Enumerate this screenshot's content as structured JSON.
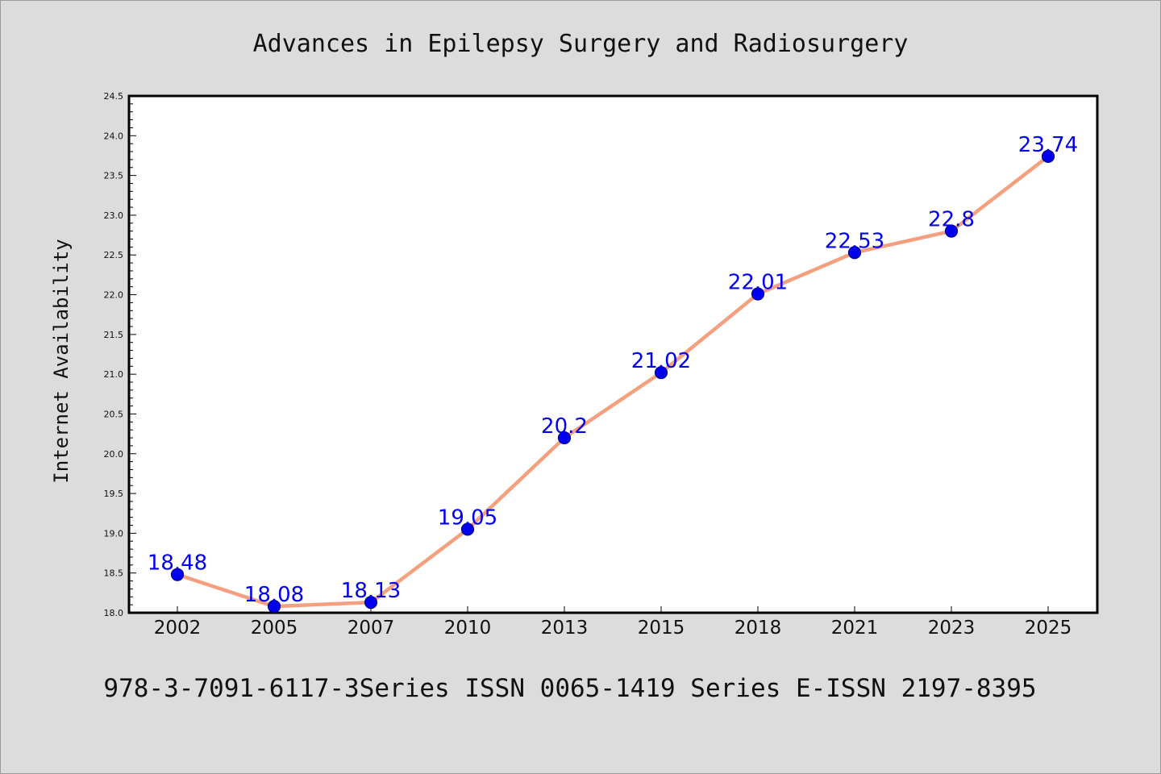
{
  "colors": {
    "background": "#dcdcdc",
    "plot_background": "#ffffff",
    "line": "#f4a07e",
    "marker_fill": "#0000ee",
    "marker_edge": "#00008b",
    "data_label": "#0000ee",
    "axis": "#000000"
  },
  "chart_data": {
    "type": "line",
    "title": "Advances in Epilepsy Surgery and Radiosurgery",
    "xlabel": "",
    "ylabel": "Internet Availability",
    "categories": [
      "2002",
      "2005",
      "2007",
      "2010",
      "2013",
      "2015",
      "2018",
      "2021",
      "2023",
      "2025"
    ],
    "series": [
      {
        "values": [
          18.48,
          18.08,
          18.13,
          19.05,
          20.2,
          21.02,
          22.01,
          22.53,
          22.8,
          23.74
        ],
        "data_labels": [
          "18.48",
          "18.08",
          "18.13",
          "19.05",
          "20.2",
          "21.02",
          "22.01",
          "22.53",
          "22.8",
          "23.74"
        ]
      }
    ],
    "ylim": [
      18.0,
      24.5
    ],
    "yticks": [
      "18.0",
      "18.5",
      "19.0",
      "19.5",
      "20.0",
      "20.5",
      "21.0",
      "21.5",
      "22.0",
      "22.5",
      "23.0",
      "23.5",
      "24.0",
      "24.5"
    ],
    "grid": false,
    "legend": "none"
  },
  "footer": {
    "text": "978-3-7091-6117-3Series ISSN 0065-1419 Series E-ISSN 2197-8395"
  }
}
